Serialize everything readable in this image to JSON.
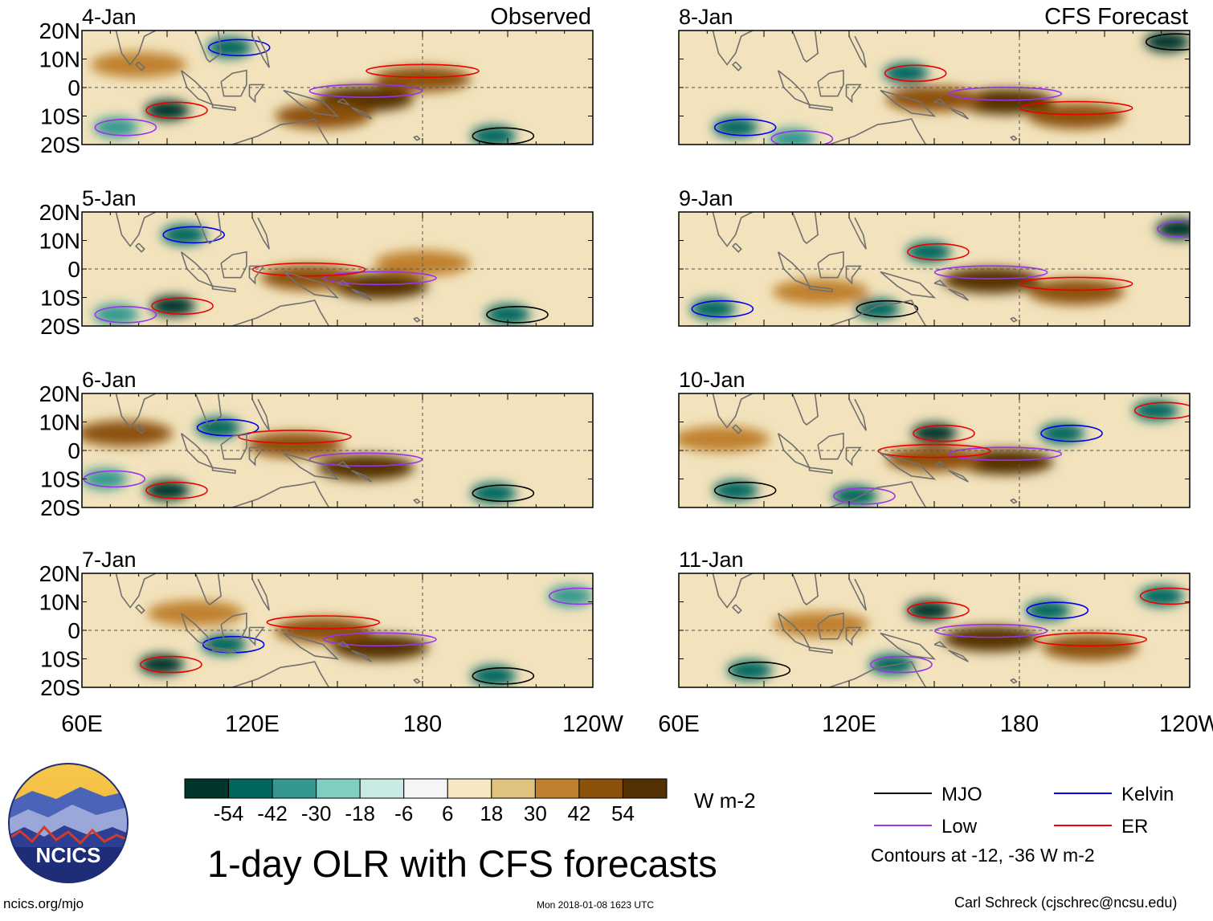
{
  "chart_data": {
    "type": "heatmap",
    "title": "1-day OLR with CFS forecasts",
    "units": "W m-2",
    "column_headers": {
      "observed": "Observed",
      "forecast": "CFS Forecast"
    },
    "x_ticks": [
      "60E",
      "120E",
      "180",
      "120W"
    ],
    "x_tick_degrees": [
      60,
      120,
      180,
      240
    ],
    "x_range_deg_east": [
      60,
      240
    ],
    "y_ticks": [
      "20N",
      "10N",
      "0",
      "10S",
      "20S"
    ],
    "y_tick_degrees": [
      20,
      10,
      0,
      -10,
      -20
    ],
    "y_range_deg": [
      -20,
      20
    ],
    "colorbar": {
      "colors": [
        "#00352b",
        "#01665e",
        "#35978f",
        "#80cdc1",
        "#c7eae5",
        "#f5f5f5",
        "#f6e8c3",
        "#dfc27d",
        "#bf812d",
        "#8c510a",
        "#543005"
      ],
      "tick_labels": [
        "-54",
        "-42",
        "-30",
        "-18",
        "-6",
        "6",
        "18",
        "30",
        "42",
        "54"
      ]
    },
    "panels": [
      {
        "label": "4-Jan",
        "source": "observed",
        "wet": [
          {
            "lon": 90,
            "lat": -8,
            "value": -54
          },
          {
            "lon": 112,
            "lat": 14,
            "value": -42
          },
          {
            "lon": 205,
            "lat": -17,
            "value": -48
          },
          {
            "lon": 72,
            "lat": -14,
            "value": -36
          }
        ],
        "dry": [
          {
            "lon": 160,
            "lat": -4,
            "value": 54
          },
          {
            "lon": 180,
            "lat": 3,
            "value": 42
          },
          {
            "lon": 145,
            "lat": -10,
            "value": 42
          },
          {
            "lon": 80,
            "lat": 8,
            "value": 30
          }
        ]
      },
      {
        "label": "5-Jan",
        "source": "observed",
        "wet": [
          {
            "lon": 92,
            "lat": -13,
            "value": -54
          },
          {
            "lon": 96,
            "lat": 12,
            "value": -42
          },
          {
            "lon": 210,
            "lat": -16,
            "value": -48
          },
          {
            "lon": 72,
            "lat": -16,
            "value": -30
          }
        ],
        "dry": [
          {
            "lon": 165,
            "lat": -6,
            "value": 54
          },
          {
            "lon": 140,
            "lat": -3,
            "value": 42
          },
          {
            "lon": 180,
            "lat": 2,
            "value": 30
          }
        ]
      },
      {
        "label": "6-Jan",
        "source": "observed",
        "wet": [
          {
            "lon": 90,
            "lat": -14,
            "value": -54
          },
          {
            "lon": 108,
            "lat": 8,
            "value": -42
          },
          {
            "lon": 205,
            "lat": -15,
            "value": -48
          },
          {
            "lon": 68,
            "lat": -10,
            "value": -36
          }
        ],
        "dry": [
          {
            "lon": 160,
            "lat": -6,
            "value": 54
          },
          {
            "lon": 135,
            "lat": 2,
            "value": 42
          },
          {
            "lon": 75,
            "lat": 6,
            "value": 42
          }
        ]
      },
      {
        "label": "7-Jan",
        "source": "observed",
        "wet": [
          {
            "lon": 88,
            "lat": -12,
            "value": -54
          },
          {
            "lon": 110,
            "lat": -5,
            "value": -42
          },
          {
            "lon": 205,
            "lat": -16,
            "value": -42
          },
          {
            "lon": 232,
            "lat": 12,
            "value": -30
          }
        ],
        "dry": [
          {
            "lon": 165,
            "lat": -6,
            "value": 54
          },
          {
            "lon": 145,
            "lat": 0,
            "value": 42
          },
          {
            "lon": 100,
            "lat": 6,
            "value": 30
          }
        ]
      },
      {
        "label": "8-Jan",
        "source": "forecast",
        "wet": [
          {
            "lon": 140,
            "lat": 5,
            "value": -42
          },
          {
            "lon": 80,
            "lat": -14,
            "value": -48
          },
          {
            "lon": 232,
            "lat": 16,
            "value": -54
          },
          {
            "lon": 100,
            "lat": -18,
            "value": -36
          }
        ],
        "dry": [
          {
            "lon": 175,
            "lat": -5,
            "value": 54
          },
          {
            "lon": 200,
            "lat": -10,
            "value": 42
          },
          {
            "lon": 150,
            "lat": -4,
            "value": 42
          }
        ]
      },
      {
        "label": "9-Jan",
        "source": "forecast",
        "wet": [
          {
            "lon": 148,
            "lat": 6,
            "value": -48
          },
          {
            "lon": 72,
            "lat": -14,
            "value": -48
          },
          {
            "lon": 130,
            "lat": -14,
            "value": -42
          },
          {
            "lon": 236,
            "lat": 14,
            "value": -54
          }
        ],
        "dry": [
          {
            "lon": 170,
            "lat": -4,
            "value": 54
          },
          {
            "lon": 200,
            "lat": -8,
            "value": 42
          },
          {
            "lon": 110,
            "lat": -8,
            "value": 30
          }
        ]
      },
      {
        "label": "10-Jan",
        "source": "forecast",
        "wet": [
          {
            "lon": 150,
            "lat": 6,
            "value": -54
          },
          {
            "lon": 195,
            "lat": 6,
            "value": -48
          },
          {
            "lon": 80,
            "lat": -14,
            "value": -48
          },
          {
            "lon": 122,
            "lat": -16,
            "value": -48
          },
          {
            "lon": 228,
            "lat": 14,
            "value": -42
          }
        ],
        "dry": [
          {
            "lon": 175,
            "lat": -4,
            "value": 54
          },
          {
            "lon": 150,
            "lat": -3,
            "value": 42
          },
          {
            "lon": 75,
            "lat": 4,
            "value": 30
          }
        ]
      },
      {
        "label": "11-Jan",
        "source": "forecast",
        "wet": [
          {
            "lon": 148,
            "lat": 7,
            "value": -54
          },
          {
            "lon": 190,
            "lat": 7,
            "value": -48
          },
          {
            "lon": 85,
            "lat": -14,
            "value": -48
          },
          {
            "lon": 135,
            "lat": -12,
            "value": -48
          },
          {
            "lon": 230,
            "lat": 12,
            "value": -42
          }
        ],
        "dry": [
          {
            "lon": 170,
            "lat": -3,
            "value": 54
          },
          {
            "lon": 205,
            "lat": -6,
            "value": 42
          },
          {
            "lon": 110,
            "lat": 2,
            "value": 30
          }
        ]
      }
    ]
  },
  "legend": {
    "items": [
      {
        "name": "MJO",
        "color": "#000000"
      },
      {
        "name": "Kelvin",
        "color": "#0000ee"
      },
      {
        "name": "Low",
        "color": "#9a32ee"
      },
      {
        "name": "ER",
        "color": "#ee0000"
      }
    ],
    "note": "Contours at -12, -36 W m-2"
  },
  "logo": {
    "text": "NCICS"
  },
  "footer": {
    "url": "ncics.org/mjo",
    "timestamp": "Mon 2018-01-08 1623 UTC",
    "credit": "Carl Schreck (cjschrec@ncsu.edu)"
  }
}
